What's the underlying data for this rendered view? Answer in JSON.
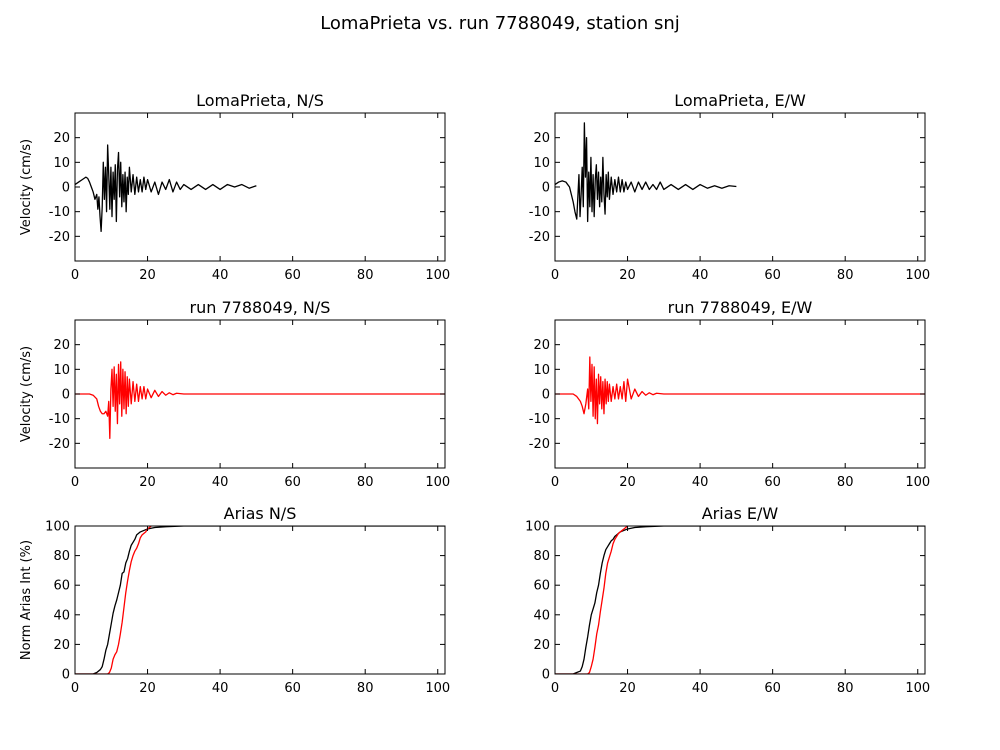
{
  "figure": {
    "title": "LomaPrieta vs. run 7788049, station snj"
  },
  "chart_data": [
    {
      "id": "ns-observed",
      "type": "line",
      "title": "LomaPrieta, N/S",
      "xlabel": "",
      "ylabel": "Velocity (cm/s)",
      "xlim": [
        0,
        102
      ],
      "ylim": [
        -30,
        30
      ],
      "xticks": [
        0,
        20,
        40,
        60,
        80,
        100
      ],
      "yticks": [
        -20,
        -10,
        0,
        10,
        20
      ],
      "series": [
        {
          "color": "#000000",
          "x": [
            0,
            1,
            2,
            3,
            3.5,
            4,
            4.5,
            5,
            5.5,
            6,
            6.3,
            6.6,
            6.9,
            7.2,
            7.5,
            7.8,
            8.1,
            8.4,
            8.7,
            9,
            9.3,
            9.6,
            9.9,
            10.2,
            10.5,
            10.8,
            11.1,
            11.4,
            11.7,
            12,
            12.3,
            12.6,
            12.9,
            13.2,
            13.5,
            13.8,
            14.1,
            14.4,
            14.7,
            15,
            15.5,
            16,
            16.5,
            17,
            17.5,
            18,
            18.5,
            19,
            19.5,
            20,
            21,
            22,
            23,
            24,
            25,
            26,
            27,
            28,
            29,
            30,
            32,
            34,
            36,
            38,
            40,
            42,
            44,
            46,
            48,
            50
          ],
          "y": [
            1,
            2,
            3,
            4,
            3.5,
            2,
            0,
            -2,
            -5,
            -3,
            -9,
            -4,
            -12,
            -18,
            -8,
            10,
            -5,
            8,
            -10,
            17,
            5,
            -9,
            8,
            -12,
            6,
            -5,
            9,
            -14,
            7,
            14,
            -4,
            10,
            -8,
            5,
            -6,
            6,
            -10,
            4,
            -3,
            8,
            -2,
            5,
            -3,
            4,
            -2,
            3,
            -2,
            4,
            -1,
            3,
            -2,
            2,
            -3,
            2,
            -1,
            3,
            -2,
            2,
            -1,
            1,
            -1,
            1,
            -1,
            1,
            -1,
            1,
            0,
            1,
            -0.5,
            0.5
          ]
        }
      ]
    },
    {
      "id": "ew-observed",
      "type": "line",
      "title": "LomaPrieta, E/W",
      "xlabel": "",
      "ylabel": "",
      "xlim": [
        0,
        102
      ],
      "ylim": [
        -30,
        30
      ],
      "xticks": [
        0,
        20,
        40,
        60,
        80,
        100
      ],
      "yticks": [
        -20,
        -10,
        0,
        10,
        20
      ],
      "series": [
        {
          "color": "#000000",
          "x": [
            0,
            1,
            2,
            3,
            4,
            4.5,
            5,
            5.5,
            6,
            6.3,
            6.6,
            6.9,
            7.2,
            7.5,
            7.8,
            8.1,
            8.4,
            8.7,
            9,
            9.3,
            9.6,
            9.9,
            10.2,
            10.5,
            10.8,
            11.1,
            11.4,
            11.7,
            12,
            12.3,
            12.6,
            12.9,
            13.2,
            13.5,
            13.8,
            14.1,
            14.4,
            14.7,
            15,
            15.5,
            16,
            16.5,
            17,
            17.5,
            18,
            18.5,
            19,
            19.5,
            20,
            21,
            22,
            23,
            24,
            25,
            26,
            27,
            28,
            29,
            30,
            32,
            34,
            36,
            38,
            40,
            42,
            44,
            46,
            48,
            50
          ],
          "y": [
            1,
            2,
            2.5,
            2,
            0,
            -3,
            -6,
            -10,
            -13,
            -4,
            5,
            -12,
            -3,
            8,
            -8,
            26,
            4,
            20,
            -14,
            6,
            -8,
            12,
            -10,
            5,
            -12,
            3,
            9,
            -5,
            6,
            -8,
            4,
            -6,
            12,
            -3,
            -11,
            5,
            -4,
            6,
            -5,
            4,
            -3,
            3,
            -2,
            4,
            -2,
            3,
            -2,
            2,
            -1,
            2,
            -2,
            2,
            -1,
            2,
            -1,
            1,
            -1,
            2,
            -1,
            1,
            -1,
            1,
            -1,
            1,
            -0.5,
            0.5,
            -0.5,
            0.5,
            0.2
          ]
        }
      ]
    },
    {
      "id": "ns-simulated",
      "type": "line",
      "title": "run 7788049, N/S",
      "xlabel": "",
      "ylabel": "Velocity (cm/s)",
      "xlim": [
        0,
        102
      ],
      "ylim": [
        -30,
        30
      ],
      "xticks": [
        0,
        20,
        40,
        60,
        80,
        100
      ],
      "yticks": [
        -20,
        -10,
        0,
        10,
        20
      ],
      "series": [
        {
          "color": "#ff0000",
          "x": [
            0,
            4,
            5,
            6,
            6.5,
            7,
            7.5,
            8,
            8.5,
            9,
            9.3,
            9.6,
            9.9,
            10.2,
            10.5,
            10.8,
            11.1,
            11.4,
            11.7,
            12,
            12.3,
            12.6,
            12.9,
            13.2,
            13.5,
            13.8,
            14.1,
            14.4,
            14.7,
            15,
            15.5,
            16,
            16.5,
            17,
            17.5,
            18,
            18.5,
            19,
            19.5,
            20,
            21,
            22,
            23,
            24,
            25,
            26,
            27,
            28,
            30,
            35,
            40,
            50,
            60,
            70,
            80,
            90,
            102
          ],
          "y": [
            0,
            0,
            -0.5,
            -2,
            -5,
            -7,
            -8,
            -8,
            -7,
            -9,
            -3,
            -18,
            2,
            10,
            -5,
            11,
            -7,
            8,
            -12,
            12,
            -4,
            13,
            -9,
            10,
            -6,
            9,
            -8,
            7,
            -5,
            6,
            -4,
            5,
            -3,
            4,
            -3,
            3,
            -2,
            3,
            -2,
            2,
            -1.5,
            1.5,
            -1,
            1,
            -0.5,
            0.5,
            -0.3,
            0.3,
            0,
            0,
            0,
            0,
            0,
            0,
            0,
            0,
            0
          ]
        }
      ]
    },
    {
      "id": "ew-simulated",
      "type": "line",
      "title": "run 7788049, E/W",
      "xlabel": "",
      "ylabel": "",
      "xlim": [
        0,
        102
      ],
      "ylim": [
        -30,
        30
      ],
      "xticks": [
        0,
        20,
        40,
        60,
        80,
        100
      ],
      "yticks": [
        -20,
        -10,
        0,
        10,
        20
      ],
      "series": [
        {
          "color": "#ff0000",
          "x": [
            0,
            5,
            6,
            7,
            7.5,
            8,
            8.5,
            9,
            9.3,
            9.6,
            9.9,
            10.2,
            10.5,
            10.8,
            11.1,
            11.4,
            11.7,
            12,
            12.3,
            12.6,
            12.9,
            13.2,
            13.5,
            13.8,
            14.1,
            14.4,
            14.7,
            15,
            15.5,
            16,
            16.5,
            17,
            17.5,
            18,
            18.5,
            19,
            19.5,
            20,
            21,
            22,
            23,
            24,
            25,
            26,
            27,
            28,
            30,
            35,
            40,
            50,
            60,
            70,
            80,
            90,
            102
          ],
          "y": [
            0,
            0,
            -1,
            -3,
            -5,
            -8,
            -4,
            2,
            -6,
            15,
            -3,
            12,
            -9,
            11,
            -10,
            6,
            -12,
            8,
            -4,
            7,
            -6,
            5,
            -8,
            6,
            -4,
            5,
            -3,
            4,
            -3,
            3,
            -2,
            4,
            -2,
            3,
            -2,
            5,
            -3,
            6,
            -2,
            2,
            -1,
            1,
            -0.5,
            0.5,
            -0.3,
            0.3,
            0,
            0,
            0,
            0,
            0,
            0,
            0,
            0,
            0
          ]
        }
      ]
    },
    {
      "id": "ns-arias",
      "type": "line",
      "title": "Arias N/S",
      "xlabel": "",
      "ylabel": "Norm Arias Int (%)",
      "xlim": [
        0,
        102
      ],
      "ylim": [
        0,
        100
      ],
      "xticks": [
        0,
        20,
        40,
        60,
        80,
        100
      ],
      "yticks": [
        0,
        20,
        40,
        60,
        80,
        100
      ],
      "series": [
        {
          "color": "#000000",
          "x": [
            0,
            5,
            6,
            7,
            7.5,
            8,
            8.5,
            9,
            9.5,
            10,
            10.5,
            11,
            11.5,
            12,
            12.5,
            13,
            13.5,
            14,
            14.5,
            15,
            15.5,
            16,
            16.5,
            17,
            17.5,
            18,
            19,
            20,
            22,
            25,
            30,
            40,
            50,
            60,
            80,
            102
          ],
          "y": [
            0,
            0,
            1,
            3,
            5,
            10,
            16,
            20,
            27,
            34,
            41,
            46,
            50,
            55,
            60,
            68,
            69,
            75,
            78,
            83,
            87,
            89,
            91,
            94,
            95,
            96,
            97,
            98,
            99,
            99.5,
            100,
            100,
            100,
            100,
            100,
            100
          ]
        },
        {
          "color": "#ff0000",
          "x": [
            0,
            9,
            9.5,
            10,
            10.5,
            11,
            11.5,
            12,
            12.5,
            13,
            13.5,
            14,
            14.5,
            15,
            15.5,
            16,
            16.5,
            17,
            17.5,
            18,
            18.5,
            19,
            19.5,
            20,
            21
          ],
          "y": [
            0,
            0,
            1,
            4,
            10,
            13,
            15,
            20,
            27,
            35,
            45,
            55,
            63,
            70,
            76,
            80,
            83,
            85,
            88,
            92,
            94,
            95,
            96,
            98,
            100
          ]
        }
      ]
    },
    {
      "id": "ew-arias",
      "type": "line",
      "title": "Arias E/W",
      "xlabel": "",
      "ylabel": "",
      "xlim": [
        0,
        102
      ],
      "ylim": [
        0,
        100
      ],
      "xticks": [
        0,
        20,
        40,
        60,
        80,
        100
      ],
      "yticks": [
        0,
        20,
        40,
        60,
        80,
        100
      ],
      "series": [
        {
          "color": "#000000",
          "x": [
            0,
            5,
            6,
            7,
            7.5,
            8,
            8.5,
            9,
            9.5,
            10,
            10.5,
            11,
            11.5,
            12,
            12.5,
            13,
            13.5,
            14,
            14.5,
            15,
            15.5,
            16,
            16.5,
            17,
            17.5,
            18,
            19,
            20,
            22,
            25,
            30,
            40,
            50,
            60,
            80,
            102
          ],
          "y": [
            0,
            0,
            1,
            2,
            5,
            10,
            18,
            25,
            33,
            40,
            44,
            48,
            55,
            60,
            68,
            75,
            80,
            84,
            86,
            88,
            90,
            91,
            93,
            94,
            95,
            96,
            97,
            98,
            99,
            99.5,
            100,
            100,
            100,
            100,
            100,
            100
          ]
        },
        {
          "color": "#ff0000",
          "x": [
            0,
            9,
            9.5,
            10,
            10.5,
            11,
            11.5,
            12,
            12.5,
            13,
            13.5,
            14,
            14.5,
            15,
            15.5,
            16,
            16.5,
            17,
            17.5,
            18,
            18.5,
            19,
            19.5,
            20
          ],
          "y": [
            0,
            0,
            1,
            5,
            10,
            18,
            27,
            33,
            42,
            50,
            58,
            68,
            75,
            79,
            83,
            88,
            91,
            93,
            95,
            96,
            97,
            98,
            99,
            100
          ]
        }
      ]
    }
  ]
}
